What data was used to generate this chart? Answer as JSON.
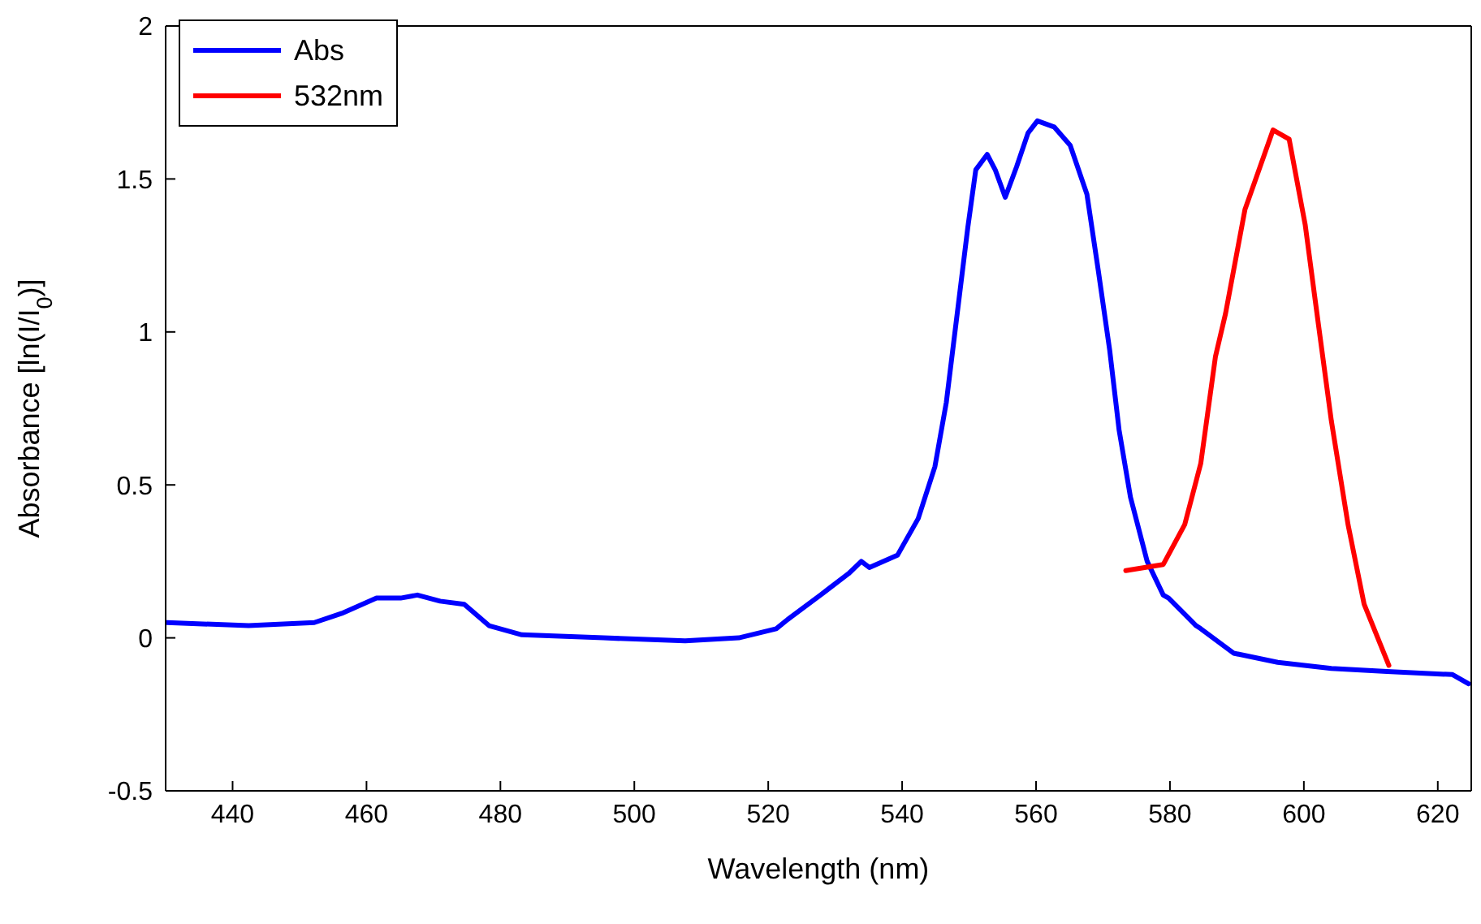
{
  "chart_data": {
    "type": "line",
    "xlabel": "Wavelength (nm)",
    "ylabel": "Absorbance [ln(I/I$_{0}$)]",
    "xlim": [
      430,
      625
    ],
    "xticks": [
      440,
      460,
      480,
      500,
      520,
      540,
      560,
      580,
      600,
      620
    ],
    "ylim": [
      -0.5,
      2
    ],
    "yticks": [
      -0.5,
      0,
      0.5,
      1,
      1.5,
      2
    ],
    "legend": "top left",
    "marker": "none",
    "line_style": "solid",
    "series": [
      {
        "name": "Abs",
        "color": "#0000ff",
        "x": [
          430.2,
          442.4,
          452.2,
          456.3,
          461.5,
          465.1,
          467.6,
          471,
          474.6,
          478.3,
          483.2,
          495.4,
          507.6,
          515.6,
          521.2,
          522.9,
          527.8,
          532,
          533.9,
          535.1,
          539.3,
          542.4,
          544.9,
          546.6,
          548,
          549.8,
          551,
          552.7,
          553.9,
          555.4,
          557.1,
          558.8,
          560.2,
          562.7,
          565.1,
          567.6,
          569.3,
          571,
          572.4,
          574.1,
          576.6,
          579,
          579.8,
          583.9,
          584.6,
          589.5,
          596.1,
          604.1,
          612.4,
          622.2,
          624.6
        ],
        "values": [
          0.05,
          0.04,
          0.05,
          0.08,
          0.13,
          0.13,
          0.14,
          0.12,
          0.11,
          0.04,
          0.01,
          0,
          -0.01,
          0,
          0.03,
          0.06,
          0.14,
          0.21,
          0.25,
          0.23,
          0.27,
          0.39,
          0.56,
          0.77,
          1.02,
          1.34,
          1.53,
          1.58,
          1.53,
          1.44,
          1.54,
          1.65,
          1.69,
          1.67,
          1.61,
          1.45,
          1.2,
          0.94,
          0.68,
          0.46,
          0.25,
          0.14,
          0.13,
          0.04,
          0.03,
          -0.05,
          -0.08,
          -0.1,
          -0.11,
          -0.12,
          -0.15
        ]
      },
      {
        "name": "532nm",
        "color": "#ff0000",
        "x": [
          573.4,
          579,
          582.2,
          584.6,
          586.8,
          588.3,
          591.2,
          595.4,
          597.8,
          600.2,
          602.2,
          604.1,
          606.6,
          609,
          612.7
        ],
        "values": [
          0.22,
          0.24,
          0.37,
          0.57,
          0.92,
          1.06,
          1.4,
          1.66,
          1.63,
          1.35,
          1.02,
          0.71,
          0.37,
          0.11,
          -0.09
        ]
      }
    ]
  }
}
